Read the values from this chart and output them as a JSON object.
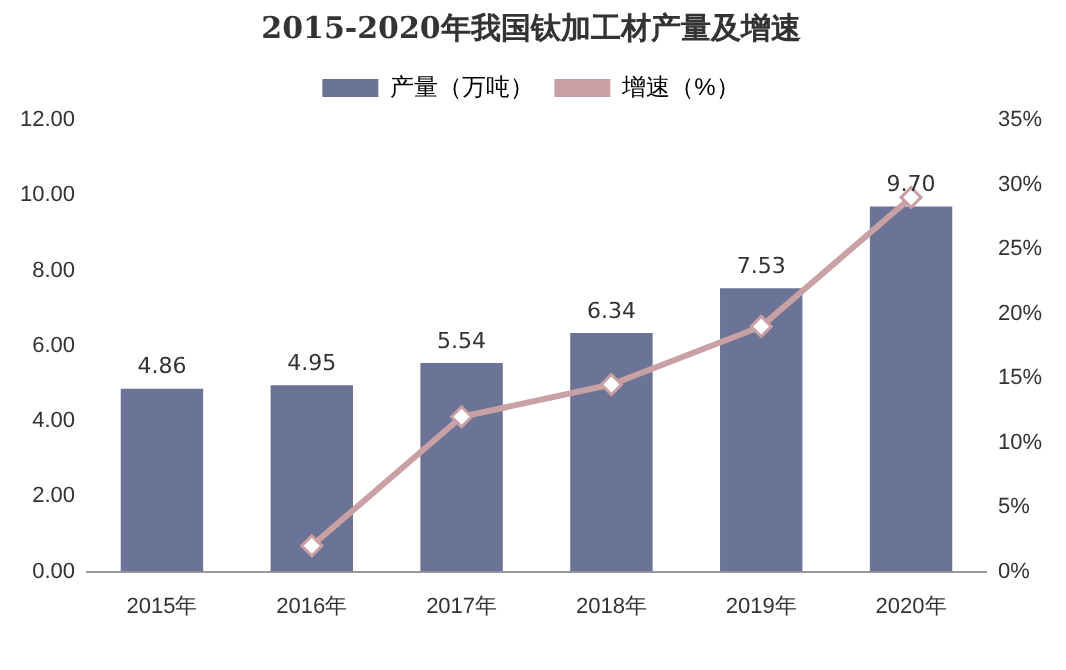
{
  "chart_data": {
    "type": "bar",
    "title": "2015-2020年我国钛加工材产量及增速",
    "categories": [
      "2015年",
      "2016年",
      "2017年",
      "2018年",
      "2019年",
      "2020年"
    ],
    "series": [
      {
        "name": "产量（万吨）",
        "color": "#6b7396",
        "values": [
          4.86,
          4.95,
          5.54,
          6.34,
          7.53,
          9.7
        ],
        "value_labels": [
          "4.86",
          "4.95",
          "5.54",
          "6.34",
          "7.53",
          "9.70"
        ]
      },
      {
        "name": "增速（%）",
        "type": "line",
        "axis": "y2",
        "color": "#c9a0a3",
        "values": [
          null,
          2,
          12,
          14.5,
          19,
          29
        ]
      }
    ],
    "ylim": [
      0,
      12
    ],
    "yticks": [
      {
        "value": 0,
        "label": "0.00"
      },
      {
        "value": 2,
        "label": "2.00"
      },
      {
        "value": 4,
        "label": "4.00"
      },
      {
        "value": 6,
        "label": "6.00"
      },
      {
        "value": 8,
        "label": "8.00"
      },
      {
        "value": 10,
        "label": "10.00"
      },
      {
        "value": 12,
        "label": "12.00"
      }
    ],
    "y2lim": [
      0,
      35
    ],
    "y2ticks": [
      {
        "value": 0,
        "label": "0%"
      },
      {
        "value": 5,
        "label": "5%"
      },
      {
        "value": 10,
        "label": "10%"
      },
      {
        "value": 15,
        "label": "15%"
      },
      {
        "value": 20,
        "label": "20%"
      },
      {
        "value": 25,
        "label": "25%"
      },
      {
        "value": 30,
        "label": "30%"
      },
      {
        "value": 35,
        "label": "35%"
      }
    ],
    "grid": false,
    "legend": "top",
    "marker": "diamond",
    "line_style": "solid"
  }
}
